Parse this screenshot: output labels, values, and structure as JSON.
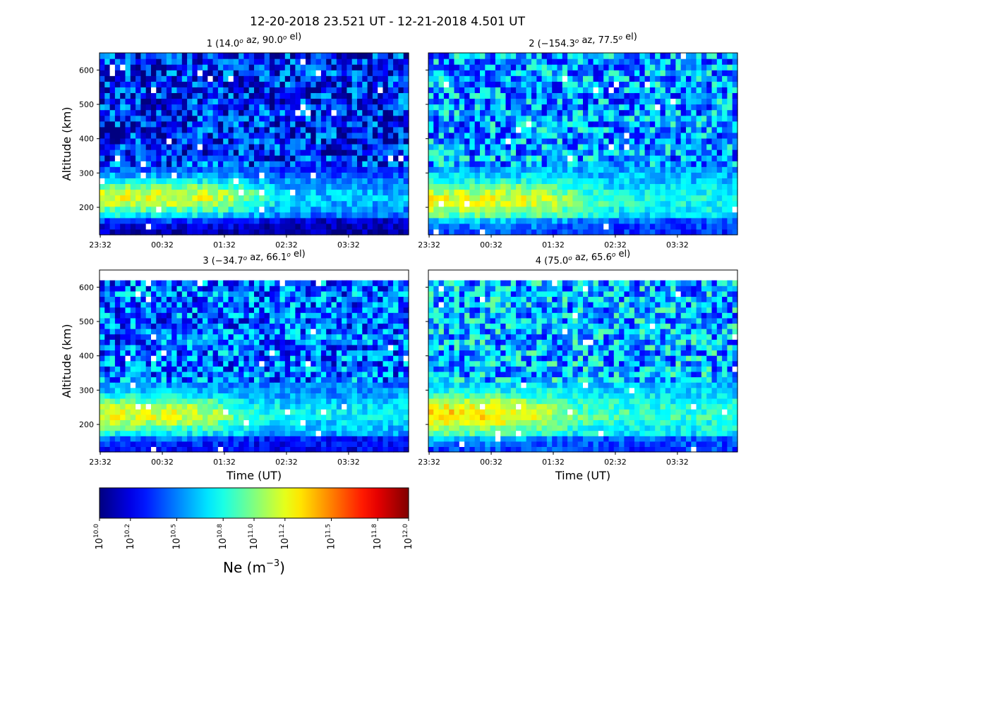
{
  "figure": {
    "title": "12-20-2018 23.521 UT - 12-21-2018 4.501 UT"
  },
  "chart_data": [
    {
      "type": "heatmap",
      "panel": 1,
      "title_prefix": "1 (14.0",
      "title_az": "az,  90.0",
      "title_el": "el)",
      "degree_symbol": "o",
      "ylabel": "Altitude (km)",
      "xlabel": "",
      "y_tick_labels": [
        "200",
        "300",
        "400",
        "500",
        "600"
      ],
      "x_tick_labels": [
        "23:32",
        "00:32",
        "01:32",
        "02:32",
        "03:32"
      ],
      "ylim": [
        120,
        650
      ],
      "data_top_km": 650,
      "color_scale": "log10 Ne",
      "profile": {
        "f_peak_km": 230,
        "f_peak_log10": 11.2,
        "f_decay_after": "02:00",
        "background_log10": 10.3
      }
    },
    {
      "type": "heatmap",
      "panel": 2,
      "title_prefix": "2 (−154.3",
      "title_az": "az,  77.5",
      "title_el": "el)",
      "degree_symbol": "o",
      "ylabel": "",
      "xlabel": "",
      "y_tick_labels": [],
      "x_tick_labels": [
        "23:32",
        "00:32",
        "01:32",
        "02:32",
        "03:32"
      ],
      "ylim": [
        120,
        650
      ],
      "data_top_km": 650,
      "color_scale": "log10 Ne",
      "profile": {
        "f_peak_km": 220,
        "f_peak_log10": 11.2,
        "f_decay_after": "01:50",
        "background_log10": 10.55
      }
    },
    {
      "type": "heatmap",
      "panel": 3,
      "title_prefix": "3 (−34.7",
      "title_az": "az,  66.1",
      "title_el": "el)",
      "degree_symbol": "o",
      "ylabel": "Altitude (km)",
      "xlabel": "Time (UT)",
      "y_tick_labels": [
        "200",
        "300",
        "400",
        "500",
        "600"
      ],
      "x_tick_labels": [
        "23:32",
        "00:32",
        "01:32",
        "02:32",
        "03:32"
      ],
      "ylim": [
        120,
        650
      ],
      "data_top_km": 620,
      "color_scale": "log10 Ne",
      "profile": {
        "f_peak_km": 230,
        "f_peak_log10": 11.2,
        "f_decay_after": "01:40",
        "background_log10": 10.45
      }
    },
    {
      "type": "heatmap",
      "panel": 4,
      "title_prefix": "4 (75.0",
      "title_az": "az,  65.6",
      "title_el": "el)",
      "degree_symbol": "o",
      "ylabel": "",
      "xlabel": "Time (UT)",
      "y_tick_labels": [],
      "x_tick_labels": [
        "23:32",
        "00:32",
        "01:32",
        "02:32",
        "03:32"
      ],
      "ylim": [
        120,
        650
      ],
      "data_top_km": 620,
      "color_scale": "log10 Ne",
      "profile": {
        "f_peak_km": 230,
        "f_peak_log10": 11.3,
        "f_decay_after": "01:30",
        "background_log10": 10.6
      }
    }
  ],
  "colorbar": {
    "label_main": "Ne (m",
    "label_exp": "−3",
    "label_close": ")",
    "colormap": "jet",
    "range": [
      10.0,
      12.0
    ],
    "tick_base": "10",
    "ticks": [
      "10.0",
      "10.2",
      "10.5",
      "10.8",
      "11.0",
      "11.2",
      "11.5",
      "11.8",
      "12.0"
    ]
  }
}
